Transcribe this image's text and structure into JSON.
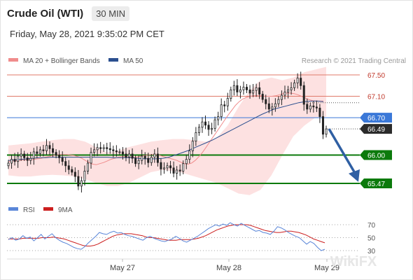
{
  "header": {
    "instrument": "Crude Oil (WTI)",
    "timeframe": "30 MIN",
    "datetime": "Friday, May 28, 2021 9:35:02 PM CET"
  },
  "legend": {
    "ma20": "MA 20 + Bollinger Bands",
    "ma50": "MA 50",
    "ma20_color": "#f08c8c",
    "ma50_color": "#2b4f8f",
    "credit": "Research © 2021 Trading Central"
  },
  "watermark": "WikiFX",
  "chart_data": [
    {
      "type": "candlestick",
      "title": "Crude Oil (WTI)",
      "ylim": [
        64.9,
        67.75
      ],
      "x_ticks": [
        "May 27",
        "May 28",
        "May 29"
      ],
      "levels": [
        {
          "value": 67.5,
          "label": "67.50",
          "kind": "resistance-thin",
          "color": "#e07a6a"
        },
        {
          "value": 67.1,
          "label": "67.10",
          "kind": "resistance-thin",
          "color": "#e07a6a"
        },
        {
          "value": 66.7,
          "label": "66.70",
          "kind": "pivot",
          "color": "#3a78d8"
        },
        {
          "value": 66.0,
          "label": "66.00",
          "kind": "support",
          "color": "#0c7a0c"
        },
        {
          "value": 65.47,
          "label": "65.47",
          "kind": "support",
          "color": "#0c7a0c"
        }
      ],
      "last_price": {
        "value": 66.49,
        "label": "66.49"
      },
      "close": [
        65.85,
        65.92,
        65.88,
        65.98,
        66.02,
        65.95,
        65.9,
        65.94,
        66.06,
        66.03,
        66.1,
        66.08,
        66.18,
        66.12,
        66.05,
        66.0,
        65.95,
        65.88,
        65.8,
        65.73,
        65.68,
        65.6,
        65.42,
        65.52,
        65.7,
        65.85,
        66.05,
        66.1,
        66.14,
        66.12,
        66.14,
        66.12,
        66.1,
        66.08,
        66.06,
        66.06,
        66.02,
        65.96,
        66.02,
        65.94,
        65.84,
        65.9,
        65.98,
        65.94,
        65.86,
        65.96,
        66.02,
        65.86,
        65.74,
        65.76,
        65.8,
        65.76,
        65.66,
        65.72,
        65.7,
        65.84,
        65.92,
        66.08,
        66.26,
        66.42,
        66.52,
        66.62,
        66.56,
        66.48,
        66.5,
        66.66,
        66.72,
        66.94,
        66.92,
        67.06,
        67.22,
        67.3,
        67.18,
        67.22,
        67.27,
        67.22,
        67.16,
        67.21,
        67.26,
        67.14,
        67.04,
        66.96,
        66.86,
        66.9,
        66.96,
        67.04,
        67.12,
        67.18,
        67.22,
        67.26,
        67.35,
        67.44,
        67.3,
        66.95,
        66.86,
        66.92,
        66.9,
        66.88,
        66.72,
        66.39,
        66.49
      ],
      "ma20": [
        65.88,
        65.89,
        65.89,
        65.9,
        65.91,
        65.91,
        65.91,
        65.92,
        65.93,
        65.94,
        65.96,
        65.97,
        65.99,
        66.0,
        66.01,
        66.01,
        66.01,
        66.0,
        65.99,
        65.97,
        65.94,
        65.9,
        65.86,
        65.83,
        65.82,
        65.84,
        65.86,
        65.89,
        65.92,
        65.94,
        65.96,
        65.97,
        65.97,
        65.96,
        65.96,
        65.96,
        65.98,
        65.99,
        66.0,
        66.01,
        66.01,
        66.0,
        65.98,
        65.96,
        65.94,
        65.92,
        65.9,
        65.87,
        65.84,
        65.83,
        65.85,
        65.9,
        65.97,
        66.05,
        66.15,
        66.25,
        66.35,
        66.45,
        66.55,
        66.65,
        66.75,
        66.84,
        66.93,
        67.0,
        67.05,
        67.08,
        67.1,
        67.11,
        67.11,
        67.11,
        67.1,
        67.1,
        67.1,
        67.11,
        67.13,
        67.15,
        67.16,
        67.16,
        67.15,
        67.13,
        67.1,
        67.07,
        67.04,
        67.02,
        67.01,
        67.01,
        67.01
      ],
      "ma50": [
        65.9,
        65.91,
        65.92,
        65.93,
        65.94,
        65.95,
        65.95,
        65.96,
        65.96,
        65.96,
        65.96,
        65.96,
        65.96,
        65.96,
        65.96,
        65.96,
        65.96,
        65.95,
        65.95,
        65.95,
        65.95,
        65.94,
        65.93,
        65.93,
        65.93,
        65.94,
        65.96,
        66.0,
        66.04,
        66.08,
        66.13,
        66.18,
        66.23,
        66.28,
        66.34,
        66.4,
        66.46,
        66.52,
        66.58,
        66.64,
        66.7,
        66.76,
        66.81,
        66.86,
        66.89,
        66.92,
        66.95,
        66.98,
        67.0,
        67.01,
        67.01,
        67.0
      ],
      "bollinger_upper": [
        66.18,
        66.2,
        66.22,
        66.25,
        66.28,
        66.3,
        66.3,
        66.25,
        66.15,
        66.05,
        66.08,
        66.15,
        66.2,
        66.25,
        66.28,
        66.3,
        66.3,
        66.28,
        66.25,
        66.32,
        66.55,
        66.9,
        67.2,
        67.4,
        67.45,
        67.4,
        67.45,
        67.55,
        67.6,
        67.65
      ],
      "bollinger_lower": [
        65.62,
        65.6,
        65.6,
        65.62,
        65.63,
        65.62,
        65.6,
        65.55,
        65.48,
        65.42,
        65.42,
        65.48,
        65.58,
        65.68,
        65.72,
        65.7,
        65.66,
        65.6,
        65.54,
        65.48,
        65.38,
        65.28,
        65.25,
        65.35,
        65.62,
        66.0,
        66.35,
        66.55,
        66.7,
        66.72
      ]
    },
    {
      "type": "line",
      "title": "RSI",
      "ylim": [
        20,
        80
      ],
      "y_ticks": [
        70,
        50,
        30
      ],
      "series": [
        {
          "name": "RSI",
          "color": "#5a86d8",
          "values": [
            47,
            50,
            46,
            48,
            53,
            49,
            51,
            45,
            50,
            55,
            48,
            52,
            56,
            50,
            46,
            43,
            41,
            38,
            35,
            33,
            32,
            36,
            42,
            47,
            52,
            58,
            56,
            55,
            58,
            60,
            57,
            58,
            55,
            53,
            52,
            50,
            48,
            46,
            50,
            52,
            49,
            47,
            45,
            44,
            46,
            48,
            52,
            49,
            45,
            43,
            46,
            49,
            52,
            56,
            60,
            64,
            67,
            70,
            68,
            71,
            69,
            73,
            70,
            68,
            72,
            69,
            66,
            63,
            60,
            61,
            58,
            57,
            55,
            60,
            67,
            65,
            62,
            58,
            55,
            52,
            50,
            45,
            40,
            44,
            41,
            35,
            30,
            32
          ]
        },
        {
          "name": "9MA",
          "color": "#cc1f1f",
          "values": [
            48,
            48,
            48,
            48,
            49,
            49,
            49,
            49,
            49,
            50,
            50,
            50,
            51,
            50,
            49,
            48,
            46,
            44,
            42,
            40,
            38,
            37,
            37,
            38,
            40,
            43,
            46,
            49,
            52,
            54,
            55,
            56,
            56,
            56,
            55,
            54,
            53,
            51,
            50,
            50,
            49,
            48,
            47,
            46,
            46,
            46,
            47,
            47,
            47,
            47,
            48,
            49,
            51,
            53,
            56,
            59,
            62,
            64,
            66,
            68,
            69,
            70,
            70,
            70,
            70,
            69,
            67,
            65,
            63,
            61,
            60,
            59,
            58,
            58,
            59,
            60,
            60,
            59,
            58,
            56,
            54,
            51,
            48,
            46,
            44,
            42
          ]
        }
      ]
    }
  ]
}
